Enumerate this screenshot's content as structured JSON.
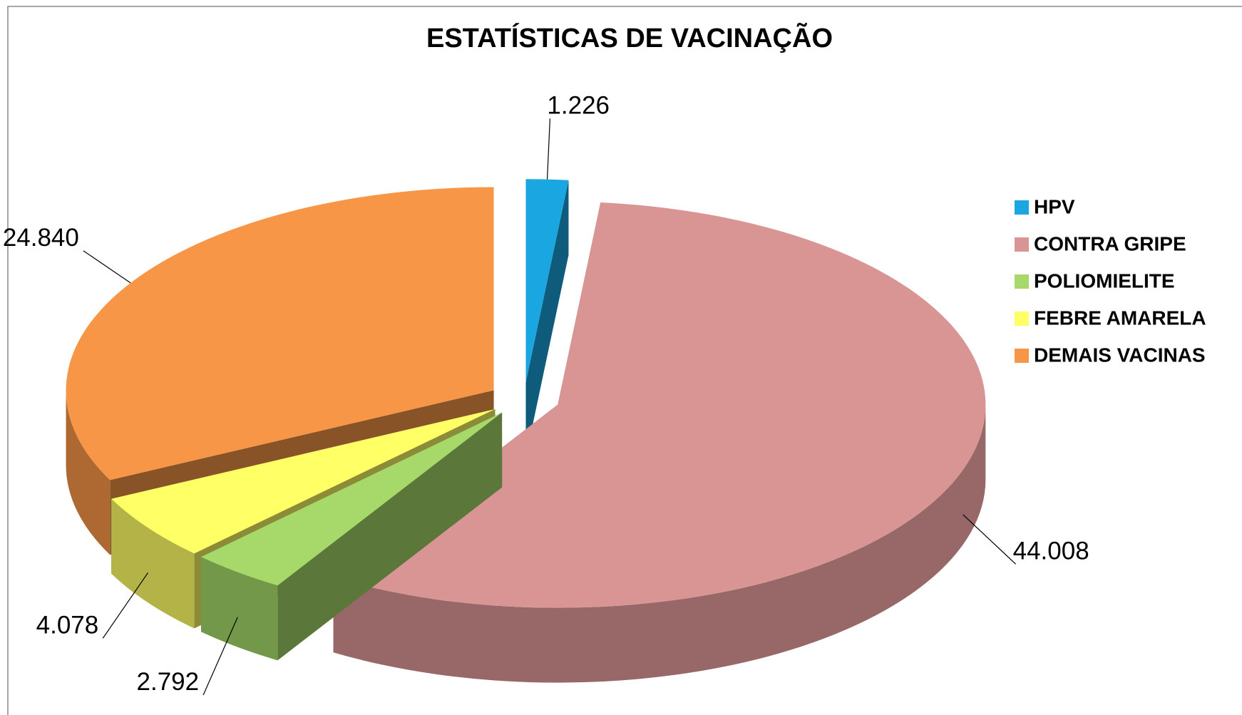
{
  "chart_data": {
    "type": "pie",
    "title": "ESTATÍSTICAS DE VACINAÇÃO",
    "categories": [
      "HPV",
      "CONTRA GRIPE",
      "POLIOMIELITE",
      "FEBRE AMARELA",
      "DEMAIS VACINAS"
    ],
    "values": [
      1226,
      44008,
      2792,
      4078,
      24840
    ],
    "value_labels": [
      "1.226",
      "44.008",
      "2.792",
      "4.078",
      "24.840"
    ],
    "colors": [
      "#1aa6e0",
      "#d99594",
      "#a6d96a",
      "#ffff66",
      "#f79646"
    ],
    "legend": "right"
  }
}
